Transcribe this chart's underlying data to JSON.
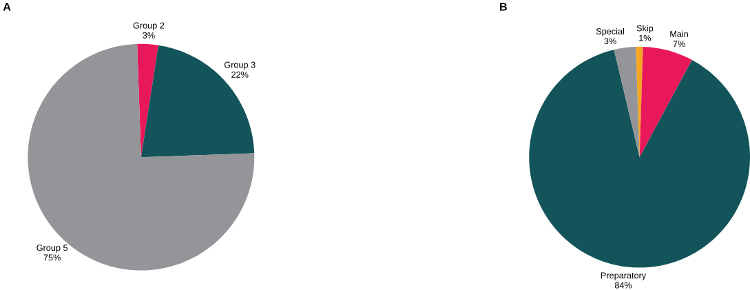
{
  "chart_data": [
    {
      "type": "pie",
      "title": "A",
      "categories": [
        "Group 2",
        "Group 3",
        "Group 5"
      ],
      "values": [
        3,
        22,
        75
      ],
      "colors": [
        "#e8185a",
        "#12545a",
        "#939598"
      ],
      "value_labels": [
        "3%",
        "22%",
        "75%"
      ]
    },
    {
      "type": "pie",
      "title": "B",
      "categories": [
        "Skip",
        "Main",
        "Preparatory",
        "Special"
      ],
      "values": [
        1,
        7,
        84,
        3
      ],
      "colors": [
        "#f5a623",
        "#e8185a",
        "#12545a",
        "#939598"
      ],
      "value_labels": [
        "1%",
        "7%",
        "84%",
        "3%"
      ]
    }
  ]
}
